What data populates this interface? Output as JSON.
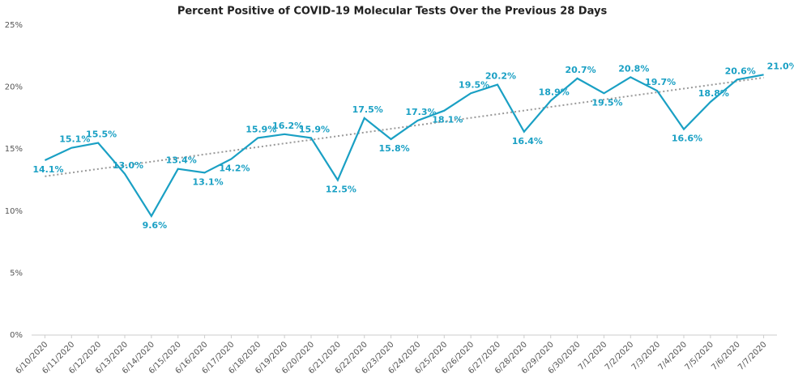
{
  "chart_data": {
    "type": "line",
    "title": "Percent Positive of COVID-19 Molecular Tests Over the Previous 28 Days",
    "categories": [
      "6/10/2020",
      "6/11/2020",
      "6/12/2020",
      "6/13/2020",
      "6/14/2020",
      "6/15/2020",
      "6/16/2020",
      "6/17/2020",
      "6/18/2020",
      "6/19/2020",
      "6/20/2020",
      "6/21/2020",
      "6/22/2020",
      "6/23/2020",
      "6/24/2020",
      "6/25/2020",
      "6/26/2020",
      "6/27/2020",
      "6/28/2020",
      "6/29/2020",
      "6/30/2020",
      "7/1/2020",
      "7/2/2020",
      "7/3/2020",
      "7/4/2020",
      "7/5/2020",
      "7/6/2020",
      "7/7/2020"
    ],
    "values": [
      14.1,
      15.1,
      15.5,
      13.0,
      9.6,
      13.4,
      13.1,
      14.2,
      15.9,
      16.2,
      15.9,
      12.5,
      17.5,
      15.8,
      17.3,
      18.1,
      19.5,
      20.2,
      16.4,
      18.9,
      20.7,
      19.5,
      20.8,
      19.7,
      16.6,
      18.8,
      20.6,
      21.0
    ],
    "value_labels": [
      "14.1%",
      "15.1%",
      "15.5%",
      "13.0%",
      "9.6%",
      "13.4%",
      "13.1%",
      "14.2%",
      "15.9%",
      "16.2%",
      "15.9%",
      "12.5%",
      "17.5%",
      "15.8%",
      "17.3%",
      "18.1%",
      "19.5%",
      "20.2%",
      "16.4%",
      "18.9%",
      "20.7%",
      "19.5%",
      "20.8%",
      "19.7%",
      "16.6%",
      "18.8%",
      "20.6%",
      "21.0%"
    ],
    "color": "#1aa0c4",
    "trendline": true,
    "ylim": [
      0,
      25
    ],
    "yticks": [
      {
        "value": 0,
        "label": "0%"
      },
      {
        "value": 5,
        "label": "5%"
      },
      {
        "value": 10,
        "label": "10%"
      },
      {
        "value": 15,
        "label": "15%"
      },
      {
        "value": 20,
        "label": "20%"
      },
      {
        "value": 25,
        "label": "25%"
      }
    ]
  }
}
